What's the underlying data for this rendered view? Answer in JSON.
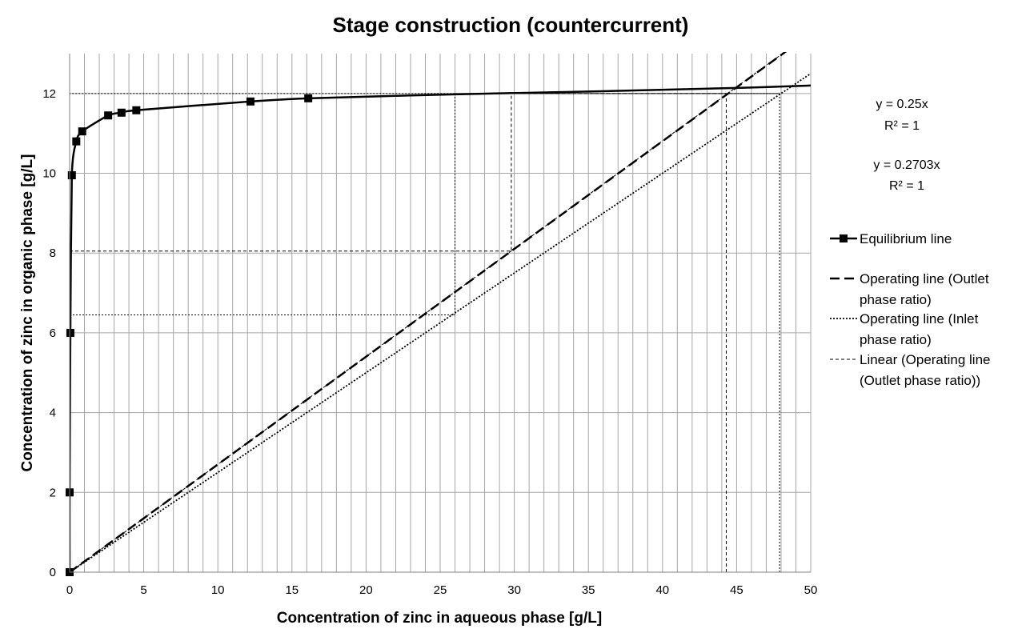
{
  "chart_data": {
    "type": "line",
    "title": "Stage construction (countercurrent)",
    "xlabel": "Concentration of zinc in aqueous phase [g/L]",
    "ylabel": "Concentration of zinc in organic phase [g/L]",
    "xlim": [
      0,
      50
    ],
    "ylim": [
      0,
      13
    ],
    "x_ticks": [
      0,
      5,
      10,
      15,
      20,
      25,
      30,
      35,
      40,
      45,
      50
    ],
    "y_ticks": [
      0,
      2,
      4,
      6,
      8,
      10,
      12
    ],
    "x_minor_step": 1,
    "grid": true,
    "legend_position": "right",
    "series": [
      {
        "name": "Equilibrium line",
        "style": "solid-marker",
        "color": "#000000",
        "x": [
          0.0,
          0.0,
          0.05,
          0.15,
          0.45,
          0.85,
          2.6,
          3.5,
          4.5,
          12.2,
          16.1,
          26.0,
          35.0,
          45.0,
          50.0
        ],
        "y": [
          0.0,
          2.0,
          6.0,
          9.95,
          10.8,
          11.05,
          11.45,
          11.52,
          11.58,
          11.8,
          11.88,
          11.98,
          12.05,
          12.14,
          12.2
        ],
        "markers": [
          true,
          true,
          true,
          true,
          true,
          true,
          true,
          true,
          true,
          true,
          true,
          false,
          false,
          false,
          false
        ]
      },
      {
        "name": "Operating line (Outlet phase ratio)",
        "style": "dashed",
        "color": "#000000",
        "x": [
          0,
          48.5
        ],
        "y": [
          0,
          13.1
        ]
      },
      {
        "name": "Operating line  (Inlet phase ratio)",
        "style": "dotted",
        "color": "#000000",
        "x": [
          0,
          50
        ],
        "y": [
          0,
          12.5
        ]
      },
      {
        "name": "Linear (Operating line (Outlet phase ratio))",
        "style": "thin-dashed",
        "color": "#000000",
        "x": [
          0,
          50
        ],
        "y": [
          0,
          13.515
        ]
      }
    ],
    "trendlines": [
      {
        "equation": "y = 0.25x",
        "r2": "R² = 1"
      },
      {
        "equation": "y = 0.2703x",
        "r2": "R² = 1"
      }
    ],
    "stage_steps": [
      {
        "style": "dotted",
        "x": [
          47.9,
          47.9,
          0,
          0
        ],
        "y": [
          0,
          12.0,
          12.0,
          12.0
        ]
      },
      {
        "style": "thin-dashed",
        "x": [
          44.3,
          44.3
        ],
        "y": [
          0,
          12.0
        ]
      },
      {
        "style": "thin-dashed",
        "x": [
          0,
          29.8,
          29.8
        ],
        "y": [
          8.05,
          8.05,
          12.0
        ]
      },
      {
        "style": "dotted",
        "x": [
          0,
          26.0,
          26.0
        ],
        "y": [
          6.45,
          6.45,
          12.0
        ]
      },
      {
        "style": "dotted",
        "x": [
          26.0,
          47.9
        ],
        "y": [
          12.0,
          12.0
        ]
      },
      {
        "style": "thin-dashed",
        "x": [
          29.8,
          44.3
        ],
        "y": [
          12.0,
          12.0
        ]
      }
    ]
  }
}
